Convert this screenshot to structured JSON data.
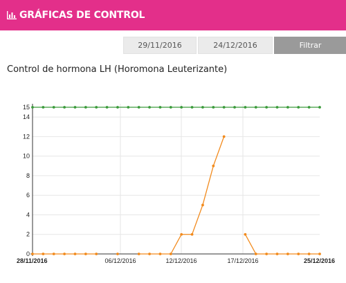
{
  "header": {
    "title": "GRÁFICAS DE CONTROL",
    "icon": "bar-chart-icon",
    "color": "#e32f8a"
  },
  "filter": {
    "date_from": "29/11/2016",
    "date_to": "24/12/2016",
    "button_label": "Filtrar"
  },
  "chart_data": {
    "type": "line",
    "title": "Control de hormona LH (Horomona Leuterizante)",
    "x_tick_labels": [
      "28/11/2016",
      "06/12/2016",
      "12/12/2016",
      "17/12/2016",
      "25/12/2016"
    ],
    "y_ticks": [
      0,
      2,
      4,
      6,
      8,
      10,
      12,
      14,
      15
    ],
    "ylim": [
      0,
      15
    ],
    "grid": true,
    "series": [
      {
        "color": "#3a9a3a",
        "values": [
          15,
          15,
          15,
          15,
          15,
          15,
          15,
          15,
          15,
          15,
          15,
          15,
          15,
          15,
          15,
          15,
          15,
          15,
          15,
          15,
          15,
          15,
          15,
          15,
          15,
          15,
          15,
          15
        ]
      },
      {
        "color": "#f28a1c",
        "values": [
          0,
          0,
          0,
          0,
          0,
          0,
          0,
          null,
          0,
          null,
          0,
          0,
          0,
          0,
          2,
          2,
          5,
          9,
          12,
          null,
          2,
          0,
          0,
          0,
          0,
          0,
          0,
          0
        ]
      }
    ]
  }
}
